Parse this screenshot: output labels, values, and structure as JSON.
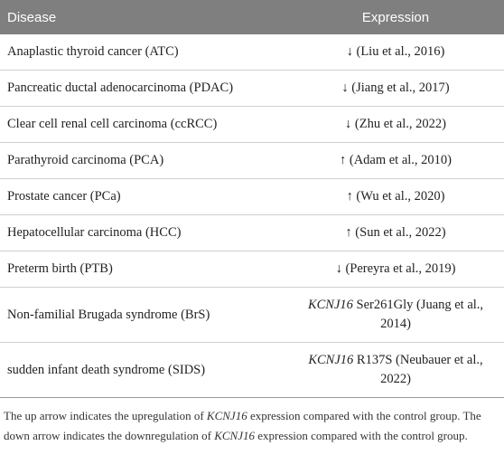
{
  "table": {
    "header": [
      "Disease",
      "Expression"
    ],
    "rows": [
      [
        {
          "text": "Anaplastic thyroid cancer (ATC)"
        },
        {
          "text": "↓ (Liu et al., 2016)"
        }
      ],
      [
        {
          "text": "Pancreatic ductal adenocarcinoma (PDAC)"
        },
        {
          "text": "↓ (Jiang et al., 2017)"
        }
      ],
      [
        {
          "text": "Clear cell renal cell carcinoma (ccRCC)"
        },
        {
          "text": "↓ (Zhu et al., 2022)"
        }
      ],
      [
        {
          "text": "Parathyroid carcinoma (PCA)"
        },
        {
          "text": "↑ (Adam et al., 2010)"
        }
      ],
      [
        {
          "text": "Prostate cancer (PCa)"
        },
        {
          "text": "↑ (Wu et al., 2020)"
        }
      ],
      [
        {
          "text": "Hepatocellular carcinoma (HCC)"
        },
        {
          "text": "↑ (Sun et al., 2022)"
        }
      ],
      [
        {
          "text": "Preterm birth (PTB)"
        },
        {
          "text": "↓ (Pereyra et al., 2019)"
        }
      ],
      [
        {
          "text": "Non-familial Brugada syndrome (BrS)"
        },
        {
          "gene": "KCNJ16",
          "text": "Ser261Gly (Juang et al., 2014)"
        }
      ],
      [
        {
          "text": "sudden infant death syndrome (SIDS)"
        },
        {
          "gene": "KCNJ16",
          "text": "R137S (Neubauer et al., 2022)"
        }
      ]
    ],
    "footnote": [
      {
        "text": "The up arrow indicates the upregulation of "
      },
      {
        "text": "KCNJ16",
        "italic": true
      },
      {
        "text": " expression compared with the control group. The down arrow indicates the downregulation of "
      },
      {
        "text": "KCNJ16",
        "italic": true
      },
      {
        "text": " expression compared with the control group."
      }
    ]
  }
}
